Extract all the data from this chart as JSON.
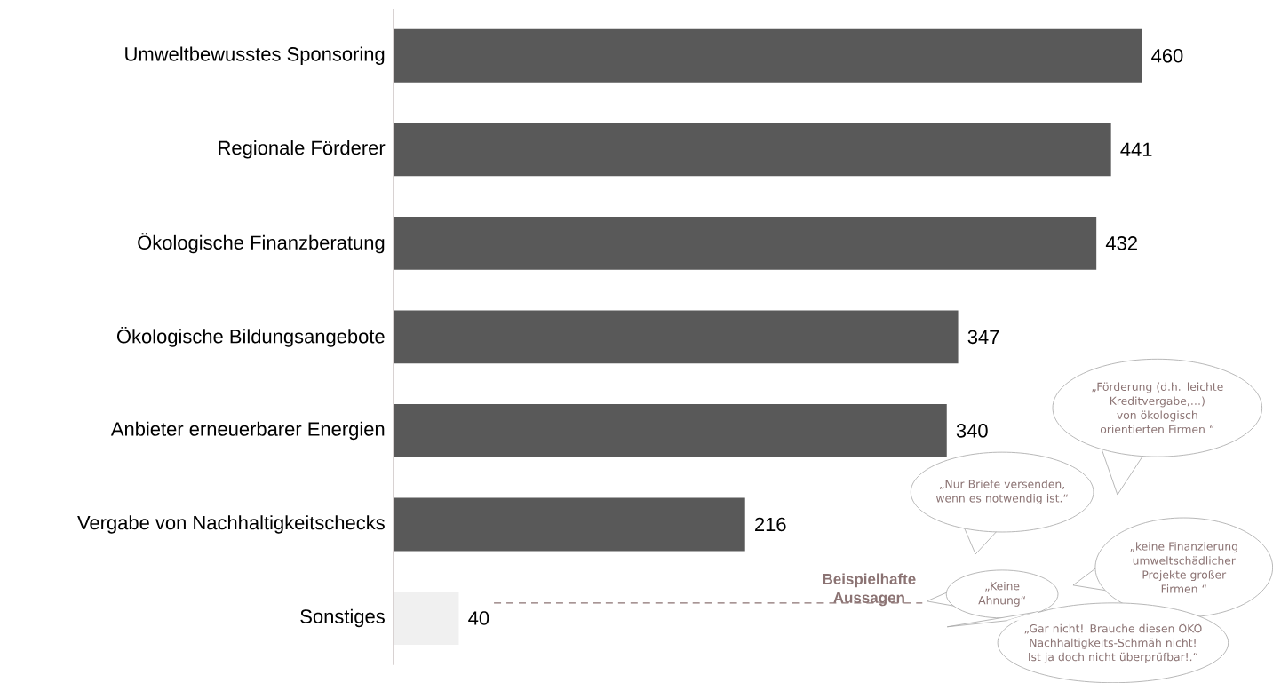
{
  "chart_data": {
    "type": "bar",
    "orientation": "horizontal",
    "categories": [
      "Umweltbewusstes Sponsoring",
      "Regionale Förderer",
      "Ökologische Finanzberatung",
      "Ökologische Bildungsangebote",
      "Anbieter erneuerbarer Energien",
      "Vergabe von Nachhaltigkeitschecks",
      "Sonstiges"
    ],
    "values": [
      460,
      441,
      432,
      347,
      340,
      216,
      40
    ],
    "colors": [
      "#595959",
      "#595959",
      "#595959",
      "#595959",
      "#595959",
      "#595959",
      "#f0f0f0"
    ],
    "data_labels": true,
    "annotations": [
      "**Beispielhafte Aussagen**",
      "„Förderung (d.h. leichte Kreditvergabe,…) von ökologisch orientierten Firmen “",
      "„Nur Briefe versenden, wenn es notwendig ist.“",
      "„keine Finanzierung umweltschädlicher Projekte großer Firmen “",
      "„Keine Ahnung“",
      "„Gar nicht! Brauche diesen ÖKÖ Nachhaltigkeits-Schmäh nicht! Ist ja doch nicht überprüfbar!.“"
    ]
  }
}
